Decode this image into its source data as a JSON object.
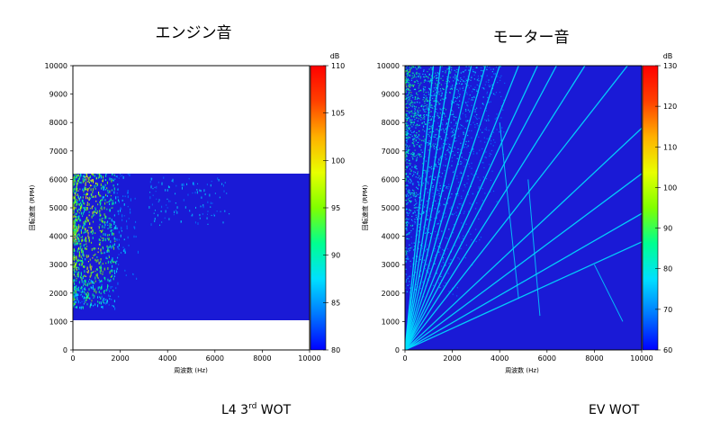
{
  "chart_data": [
    {
      "type": "heatmap",
      "title": "エンジン音",
      "xlabel": "周波数 (Hz)",
      "ylabel": "回転速度 (RPM)",
      "x_ticks": [
        "0",
        "2000",
        "4000",
        "6000",
        "8000",
        "10000"
      ],
      "y_ticks": [
        "0",
        "1000",
        "2000",
        "3000",
        "4000",
        "5000",
        "6000",
        "7000",
        "8000",
        "9000",
        "10000"
      ],
      "xlim": [
        0,
        10000
      ],
      "ylim": [
        0,
        10000
      ],
      "data_region_rpm": [
        1000,
        6200
      ],
      "colorbar": {
        "unit": "dB",
        "range": [
          80,
          110
        ],
        "ticks": [
          "80",
          "85",
          "90",
          "95",
          "100",
          "105",
          "110"
        ]
      },
      "caption": {
        "main": "L4 3",
        "sup": "rd",
        "rest": " WOT"
      }
    },
    {
      "type": "heatmap",
      "title": "モーター音",
      "xlabel": "周波数 (Hz)",
      "ylabel": "回転速度 (RPM)",
      "x_ticks": [
        "0",
        "2000",
        "4000",
        "6000",
        "8000",
        "10000"
      ],
      "y_ticks": [
        "0",
        "1000",
        "2000",
        "3000",
        "4000",
        "5000",
        "6000",
        "7000",
        "8000",
        "9000",
        "10000"
      ],
      "xlim": [
        0,
        10000
      ],
      "ylim": [
        0,
        10000
      ],
      "data_region_rpm": [
        0,
        10000
      ],
      "colorbar": {
        "unit": "dB",
        "range": [
          60,
          130
        ],
        "ticks": [
          "60",
          "70",
          "80",
          "90",
          "100",
          "110",
          "120",
          "130"
        ]
      },
      "caption": {
        "main": "EV WOT",
        "sup": "",
        "rest": ""
      }
    }
  ],
  "colors": {
    "background_fill": "#1a1ad6",
    "cmap": [
      "#0000ff",
      "#0078ff",
      "#00e0ff",
      "#00ff90",
      "#80ff00",
      "#e8ff00",
      "#ffb000",
      "#ff4000",
      "#ff0000"
    ]
  }
}
